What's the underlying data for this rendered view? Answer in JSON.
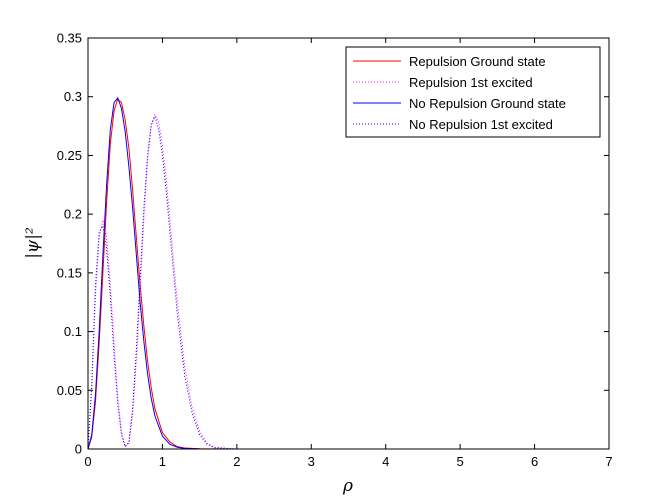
{
  "chart_data": {
    "type": "line",
    "title": "",
    "xlabel": "ρ",
    "ylabel": "|ψ|²",
    "xlim": [
      0,
      7
    ],
    "ylim": [
      0,
      0.35
    ],
    "xticks": [
      "0",
      "1",
      "2",
      "3",
      "4",
      "5",
      "6",
      "7"
    ],
    "yticks": [
      "0",
      "0.05",
      "0.1",
      "0.15",
      "0.2",
      "0.25",
      "0.3",
      "0.35"
    ],
    "grid": false,
    "legend_position": "top-right",
    "series": [
      {
        "name": "Repulsion Ground state",
        "color": "#ff0000",
        "dash": "solid",
        "x": [
          0,
          0.05,
          0.1,
          0.15,
          0.2,
          0.25,
          0.3,
          0.35,
          0.4,
          0.45,
          0.5,
          0.55,
          0.6,
          0.65,
          0.7,
          0.75,
          0.8,
          0.85,
          0.9,
          1.0,
          1.1,
          1.2,
          1.3,
          1.5,
          2.0,
          7.0
        ],
        "y": [
          0,
          0.01,
          0.04,
          0.09,
          0.15,
          0.21,
          0.26,
          0.288,
          0.298,
          0.295,
          0.28,
          0.256,
          0.22,
          0.18,
          0.14,
          0.105,
          0.075,
          0.052,
          0.034,
          0.014,
          0.006,
          0.002,
          0.0008,
          0.0002,
          0,
          0
        ]
      },
      {
        "name": "Repulsion 1st excited",
        "color": "#ff00ff",
        "dash": "dotted",
        "x": [
          0,
          0.05,
          0.1,
          0.15,
          0.2,
          0.25,
          0.3,
          0.35,
          0.4,
          0.45,
          0.5,
          0.55,
          0.6,
          0.65,
          0.7,
          0.75,
          0.8,
          0.85,
          0.9,
          0.95,
          1.0,
          1.05,
          1.1,
          1.2,
          1.3,
          1.4,
          1.5,
          1.6,
          1.7,
          2.0,
          7.0
        ],
        "y": [
          0,
          0.05,
          0.13,
          0.18,
          0.195,
          0.18,
          0.14,
          0.09,
          0.045,
          0.015,
          0.002,
          0.005,
          0.03,
          0.075,
          0.135,
          0.195,
          0.245,
          0.275,
          0.285,
          0.278,
          0.258,
          0.23,
          0.195,
          0.125,
          0.07,
          0.035,
          0.015,
          0.005,
          0.0015,
          0,
          0
        ]
      },
      {
        "name": "No Repulsion Ground state",
        "color": "#0000ff",
        "dash": "solid",
        "x": [
          0,
          0.05,
          0.1,
          0.15,
          0.2,
          0.25,
          0.3,
          0.35,
          0.4,
          0.45,
          0.5,
          0.55,
          0.6,
          0.65,
          0.7,
          0.75,
          0.8,
          0.85,
          0.9,
          1.0,
          1.1,
          1.2,
          1.3,
          1.5,
          2.0,
          7.0
        ],
        "y": [
          0,
          0.012,
          0.046,
          0.1,
          0.165,
          0.225,
          0.272,
          0.295,
          0.299,
          0.29,
          0.27,
          0.24,
          0.205,
          0.165,
          0.125,
          0.092,
          0.064,
          0.043,
          0.028,
          0.011,
          0.004,
          0.0015,
          0.0005,
          0.0001,
          0,
          0
        ]
      },
      {
        "name": "No Repulsion 1st excited",
        "color": "#0000ff",
        "dash": "dotted",
        "x": [
          0,
          0.05,
          0.1,
          0.15,
          0.2,
          0.25,
          0.3,
          0.35,
          0.4,
          0.45,
          0.5,
          0.55,
          0.6,
          0.65,
          0.7,
          0.75,
          0.8,
          0.85,
          0.9,
          0.95,
          1.0,
          1.05,
          1.1,
          1.2,
          1.3,
          1.4,
          1.5,
          1.6,
          1.7,
          2.0,
          7.0
        ],
        "y": [
          0,
          0.055,
          0.14,
          0.185,
          0.19,
          0.17,
          0.13,
          0.08,
          0.038,
          0.012,
          0.002,
          0.006,
          0.035,
          0.085,
          0.145,
          0.205,
          0.25,
          0.277,
          0.283,
          0.272,
          0.25,
          0.22,
          0.185,
          0.115,
          0.062,
          0.03,
          0.012,
          0.004,
          0.001,
          0,
          0
        ]
      }
    ]
  }
}
